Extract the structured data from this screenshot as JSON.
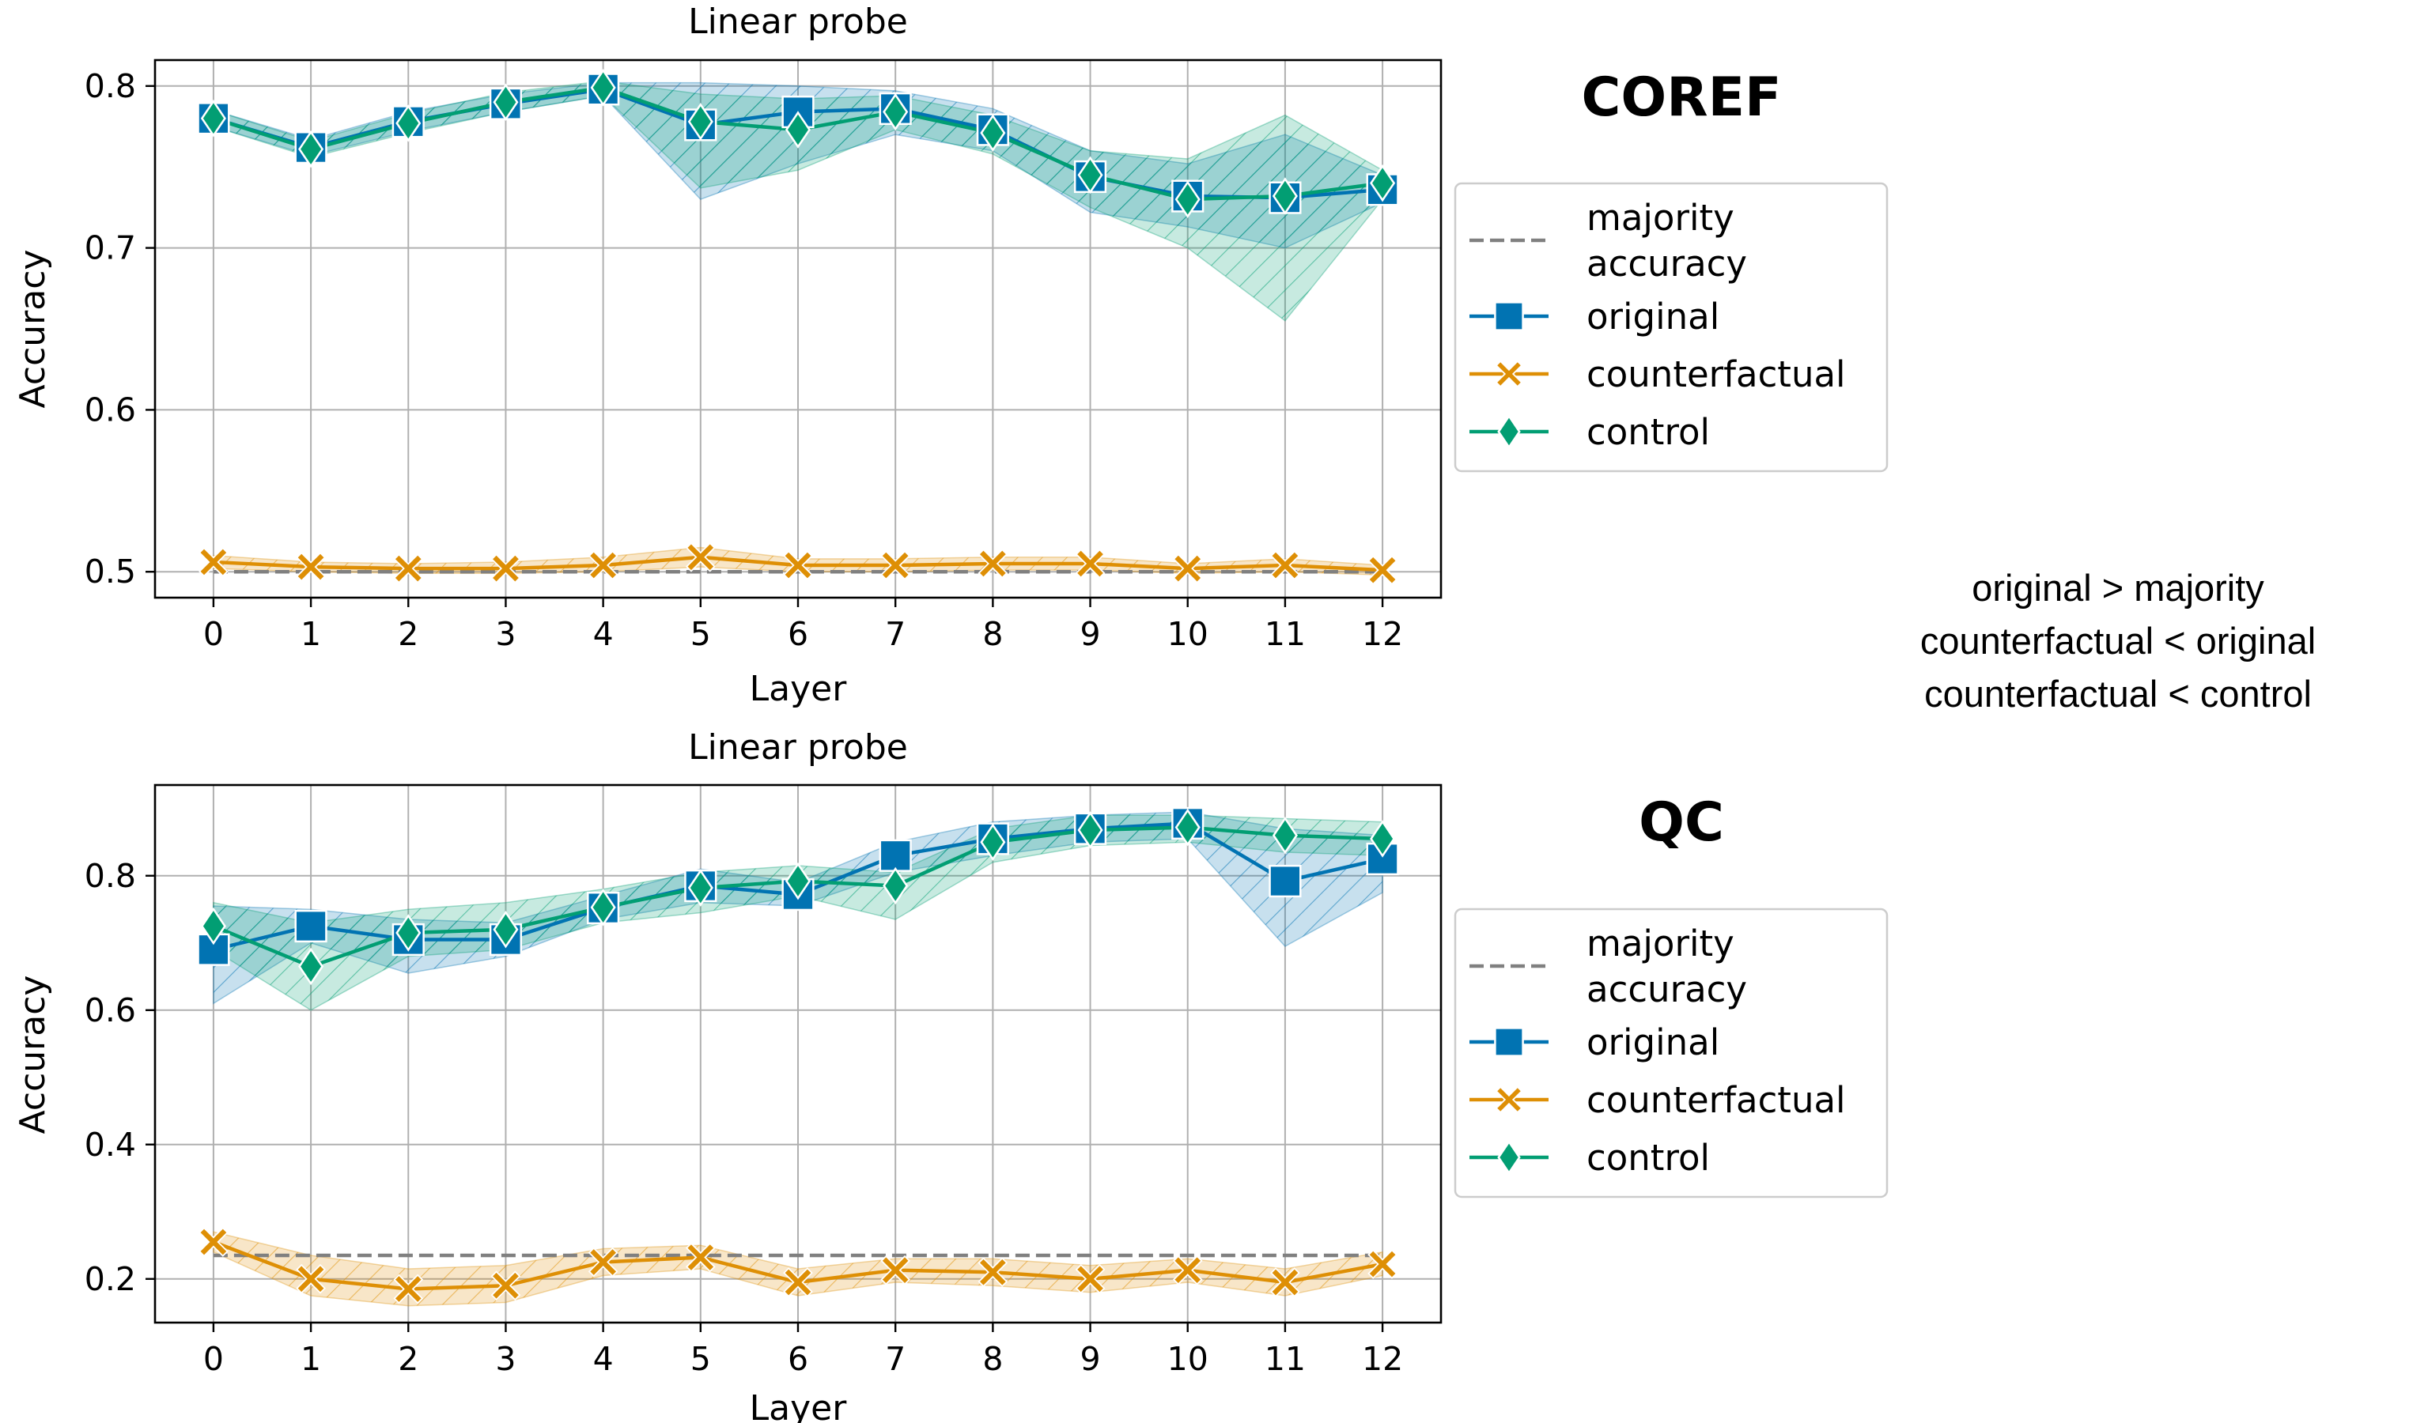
{
  "colors": {
    "majority": "#808080",
    "original": "#0173b2",
    "counterfactual": "#de8f05",
    "control": "#029e73",
    "grid": "#b0b0b0"
  },
  "legend_entries": [
    {
      "key": "majority",
      "label_lines": [
        "majority",
        "accuracy"
      ],
      "marker": "none",
      "dashed": true
    },
    {
      "key": "original",
      "label_lines": [
        "original"
      ],
      "marker": "square",
      "dashed": false
    },
    {
      "key": "counterfactual",
      "label_lines": [
        "counterfactual"
      ],
      "marker": "x",
      "dashed": false
    },
    {
      "key": "control",
      "label_lines": [
        "control"
      ],
      "marker": "diamond",
      "dashed": false
    }
  ],
  "note_lines": [
    "original > majority",
    "counterfactual < original",
    "counterfactual < control"
  ],
  "chart_data": [
    {
      "type": "line",
      "title": "Linear probe",
      "dataset_label": "COREF",
      "xlabel": "Layer",
      "ylabel": "Accuracy",
      "x": [
        0,
        1,
        2,
        3,
        4,
        5,
        6,
        7,
        8,
        9,
        10,
        11,
        12
      ],
      "xlim": [
        -0.6,
        12.6
      ],
      "ylim": [
        0.484,
        0.816
      ],
      "yticks": [
        0.5,
        0.6,
        0.7,
        0.8
      ],
      "ytick_labels": [
        "0.5",
        "0.6",
        "0.7",
        "0.8"
      ],
      "grid": true,
      "legend_position": "right",
      "majority": {
        "name": "majority accuracy",
        "y": 0.5
      },
      "series": [
        {
          "key": "original",
          "name": "original",
          "marker": "square",
          "values": [
            0.78,
            0.762,
            0.778,
            0.789,
            0.798,
            0.776,
            0.784,
            0.786,
            0.773,
            0.744,
            0.732,
            0.731,
            0.736
          ],
          "lower": [
            0.775,
            0.757,
            0.772,
            0.784,
            0.794,
            0.73,
            0.752,
            0.77,
            0.76,
            0.722,
            0.713,
            0.7,
            0.728
          ],
          "upper": [
            0.785,
            0.767,
            0.784,
            0.795,
            0.802,
            0.802,
            0.8,
            0.797,
            0.786,
            0.76,
            0.752,
            0.77,
            0.745
          ]
        },
        {
          "key": "counterfactual",
          "name": "counterfactual",
          "marker": "x",
          "values": [
            0.506,
            0.503,
            0.502,
            0.502,
            0.504,
            0.509,
            0.504,
            0.504,
            0.505,
            0.505,
            0.502,
            0.504,
            0.501
          ],
          "lower": [
            0.502,
            0.5,
            0.499,
            0.499,
            0.5,
            0.503,
            0.5,
            0.5,
            0.501,
            0.501,
            0.499,
            0.5,
            0.498
          ],
          "upper": [
            0.51,
            0.506,
            0.505,
            0.506,
            0.509,
            0.515,
            0.508,
            0.508,
            0.509,
            0.509,
            0.505,
            0.508,
            0.504
          ]
        },
        {
          "key": "control",
          "name": "control",
          "marker": "diamond",
          "values": [
            0.78,
            0.761,
            0.777,
            0.79,
            0.799,
            0.778,
            0.773,
            0.784,
            0.771,
            0.745,
            0.73,
            0.732,
            0.74
          ],
          "lower": [
            0.775,
            0.756,
            0.771,
            0.784,
            0.794,
            0.737,
            0.748,
            0.773,
            0.758,
            0.725,
            0.7,
            0.655,
            0.73
          ],
          "upper": [
            0.785,
            0.766,
            0.783,
            0.796,
            0.803,
            0.795,
            0.792,
            0.794,
            0.782,
            0.76,
            0.755,
            0.782,
            0.748
          ]
        }
      ]
    },
    {
      "type": "line",
      "title": "Linear probe",
      "dataset_label": "QC",
      "xlabel": "Layer",
      "ylabel": "Accuracy",
      "x": [
        0,
        1,
        2,
        3,
        4,
        5,
        6,
        7,
        8,
        9,
        10,
        11,
        12
      ],
      "xlim": [
        -0.6,
        12.6
      ],
      "ylim": [
        0.135,
        0.935
      ],
      "yticks": [
        0.2,
        0.4,
        0.6,
        0.8
      ],
      "ytick_labels": [
        "0.2",
        "0.4",
        "0.6",
        "0.8"
      ],
      "grid": true,
      "legend_position": "right",
      "majority": {
        "name": "majority accuracy",
        "y": 0.235
      },
      "series": [
        {
          "key": "original",
          "name": "original",
          "marker": "square",
          "values": [
            0.69,
            0.725,
            0.705,
            0.705,
            0.752,
            0.785,
            0.772,
            0.83,
            0.855,
            0.87,
            0.878,
            0.792,
            0.825
          ],
          "lower": [
            0.61,
            0.7,
            0.655,
            0.68,
            0.735,
            0.76,
            0.755,
            0.805,
            0.83,
            0.85,
            0.855,
            0.695,
            0.775
          ],
          "upper": [
            0.755,
            0.75,
            0.735,
            0.73,
            0.77,
            0.81,
            0.79,
            0.85,
            0.88,
            0.89,
            0.895,
            0.87,
            0.86
          ]
        },
        {
          "key": "counterfactual",
          "name": "counterfactual",
          "marker": "x",
          "values": [
            0.255,
            0.2,
            0.185,
            0.19,
            0.225,
            0.232,
            0.195,
            0.213,
            0.21,
            0.2,
            0.213,
            0.195,
            0.222
          ],
          "lower": [
            0.24,
            0.175,
            0.16,
            0.165,
            0.205,
            0.215,
            0.175,
            0.195,
            0.19,
            0.18,
            0.195,
            0.175,
            0.205
          ],
          "upper": [
            0.27,
            0.235,
            0.215,
            0.22,
            0.245,
            0.25,
            0.215,
            0.23,
            0.23,
            0.22,
            0.23,
            0.215,
            0.24
          ]
        },
        {
          "key": "control",
          "name": "control",
          "marker": "diamond",
          "values": [
            0.725,
            0.665,
            0.715,
            0.72,
            0.753,
            0.782,
            0.792,
            0.785,
            0.85,
            0.868,
            0.872,
            0.86,
            0.855
          ],
          "lower": [
            0.69,
            0.6,
            0.68,
            0.69,
            0.73,
            0.745,
            0.77,
            0.735,
            0.82,
            0.845,
            0.85,
            0.835,
            0.83
          ],
          "upper": [
            0.76,
            0.73,
            0.75,
            0.76,
            0.78,
            0.805,
            0.815,
            0.805,
            0.87,
            0.89,
            0.89,
            0.885,
            0.88
          ]
        }
      ]
    }
  ]
}
